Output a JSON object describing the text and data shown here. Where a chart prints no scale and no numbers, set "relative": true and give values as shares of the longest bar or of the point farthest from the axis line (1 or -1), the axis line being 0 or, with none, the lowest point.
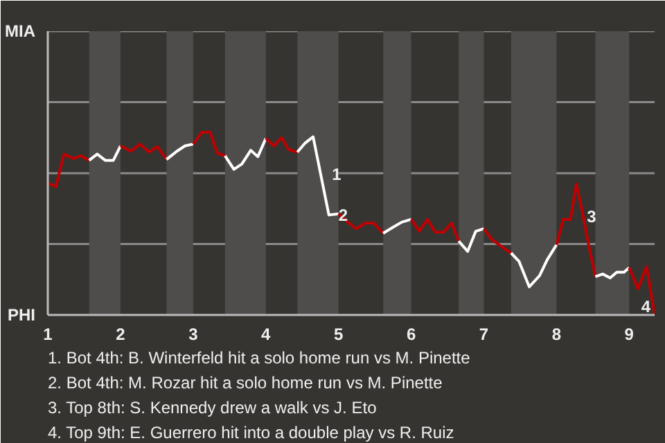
{
  "chart_data": {
    "type": "line",
    "relative": true,
    "xlim": [
      1,
      9.35
    ],
    "xticks": [
      1,
      2,
      3,
      4,
      5,
      6,
      7,
      8,
      9
    ],
    "ref_lines": [
      {
        "axis": "y",
        "value": 0.388,
        "color": "#8a8a8a"
      },
      {
        "axis": "y",
        "value": 0.776,
        "color": "#8a8a8a"
      },
      {
        "axis": "y",
        "value": 1.165,
        "color": "#8a8a8a"
      },
      {
        "axis": "y",
        "value": 1.553,
        "color": "#8a8a8a"
      }
    ],
    "marker": "none",
    "line_style": "solid",
    "series": [
      {
        "color": "#c00000",
        "x": [
          1.0,
          1.111,
          1.222,
          1.346,
          1.457,
          1.569
        ],
        "values": [
          0.722,
          0.702,
          0.88,
          0.856,
          0.871,
          0.846
        ]
      },
      {
        "color": "#ffffff",
        "x": [
          1.569,
          1.68,
          1.791,
          1.902,
          2.0
        ],
        "values": [
          0.846,
          0.88,
          0.846,
          0.846,
          0.925
        ]
      },
      {
        "color": "#c00000",
        "x": [
          2.0,
          2.142,
          2.268,
          2.395,
          2.507,
          2.634
        ],
        "values": [
          0.925,
          0.896,
          0.935,
          0.891,
          0.921,
          0.851
        ]
      },
      {
        "color": "#ffffff",
        "x": [
          2.634,
          2.776,
          2.888,
          3.0
        ],
        "values": [
          0.851,
          0.896,
          0.925,
          0.935
        ]
      },
      {
        "color": "#c00000",
        "x": [
          3.0,
          3.122,
          3.232,
          3.329,
          3.439
        ],
        "values": [
          0.935,
          1.0,
          1.0,
          0.887,
          0.871
        ]
      },
      {
        "color": "#ffffff",
        "x": [
          3.439,
          3.561,
          3.671,
          3.793,
          3.89,
          4.0
        ],
        "values": [
          0.871,
          0.797,
          0.826,
          0.901,
          0.866,
          0.966
        ]
      },
      {
        "color": "#c00000",
        "x": [
          4.0,
          4.108,
          4.217,
          4.313,
          4.434
        ],
        "values": [
          0.966,
          0.925,
          0.97,
          0.905,
          0.891
        ]
      },
      {
        "color": "#ffffff",
        "x": [
          4.434,
          4.542,
          4.651,
          4.868,
          5.0
        ],
        "values": [
          0.891,
          0.941,
          0.975,
          0.547,
          0.553
        ]
      },
      {
        "color": "#c00000",
        "x": [
          5.0,
          5.116,
          5.244,
          5.373,
          5.486,
          5.615
        ],
        "values": [
          0.553,
          0.512,
          0.472,
          0.503,
          0.503,
          0.447
        ]
      },
      {
        "color": "#ffffff",
        "x": [
          5.615,
          5.743,
          5.872,
          6.0
        ],
        "values": [
          0.447,
          0.478,
          0.508,
          0.523
        ]
      },
      {
        "color": "#c00000",
        "x": [
          6.0,
          6.111,
          6.222,
          6.333,
          6.444,
          6.556,
          6.654
        ],
        "values": [
          0.523,
          0.458,
          0.523,
          0.453,
          0.453,
          0.503,
          0.404
        ]
      },
      {
        "color": "#ffffff",
        "x": [
          6.654,
          6.778,
          6.889,
          7.0
        ],
        "values": [
          0.404,
          0.348,
          0.458,
          0.472
        ]
      },
      {
        "color": "#c00000",
        "x": [
          7.0,
          7.11,
          7.25,
          7.375
        ],
        "values": [
          0.472,
          0.413,
          0.373,
          0.339
        ]
      },
      {
        "color": "#ffffff",
        "x": [
          7.375,
          7.485,
          7.625,
          7.765,
          7.875,
          8.0
        ],
        "values": [
          0.339,
          0.293,
          0.154,
          0.214,
          0.304,
          0.384
        ]
      },
      {
        "color": "#c00000",
        "x": [
          8.0,
          8.091,
          8.192,
          8.273,
          8.364,
          8.444,
          8.535
        ],
        "values": [
          0.384,
          0.523,
          0.523,
          0.717,
          0.547,
          0.379,
          0.21
        ]
      },
      {
        "color": "#ffffff",
        "x": [
          8.535,
          8.636,
          8.738,
          8.829,
          8.929,
          9.0
        ],
        "values": [
          0.21,
          0.224,
          0.203,
          0.234,
          0.234,
          0.259
        ]
      },
      {
        "color": "#c00000",
        "x": [
          9.0,
          9.12,
          9.24,
          9.35
        ],
        "values": [
          0.259,
          0.144,
          0.264,
          0.0
        ]
      }
    ],
    "bands": [
      {
        "axis": "x",
        "from": 1.569,
        "to": 2.0,
        "color": "#4e4d4b"
      },
      {
        "axis": "x",
        "from": 2.634,
        "to": 3.0,
        "color": "#4e4d4b"
      },
      {
        "axis": "x",
        "from": 3.439,
        "to": 4.0,
        "color": "#4e4d4b"
      },
      {
        "axis": "x",
        "from": 4.434,
        "to": 5.0,
        "color": "#4e4d4b"
      },
      {
        "axis": "x",
        "from": 5.615,
        "to": 6.0,
        "color": "#4e4d4b"
      },
      {
        "axis": "x",
        "from": 6.654,
        "to": 7.0,
        "color": "#4e4d4b"
      },
      {
        "axis": "x",
        "from": 7.375,
        "to": 8.0,
        "color": "#4e4d4b"
      },
      {
        "axis": "x",
        "from": 8.535,
        "to": 9.0,
        "color": "#4e4d4b"
      }
    ],
    "annotations": [
      "MIA",
      "PHI",
      {
        "text": "1",
        "x": 4.796,
        "y": 0.79
      },
      {
        "text": "2",
        "x": 4.886,
        "y": 0.57
      },
      {
        "text": "3",
        "x": 8.303,
        "y": 0.56
      },
      {
        "text": "4",
        "x": 9.35,
        "y": 0.0
      },
      "1. Bot 4th: B. Winterfeld hit a solo home run vs M. Pinette",
      "2. Bot 4th: M. Rozar hit a solo home run vs M. Pinette",
      "3. Top 8th: S. Kennedy drew a walk vs J. Eto",
      "4. Top 9th: E. Guerrero hit into a double play vs R. Ruiz"
    ]
  }
}
